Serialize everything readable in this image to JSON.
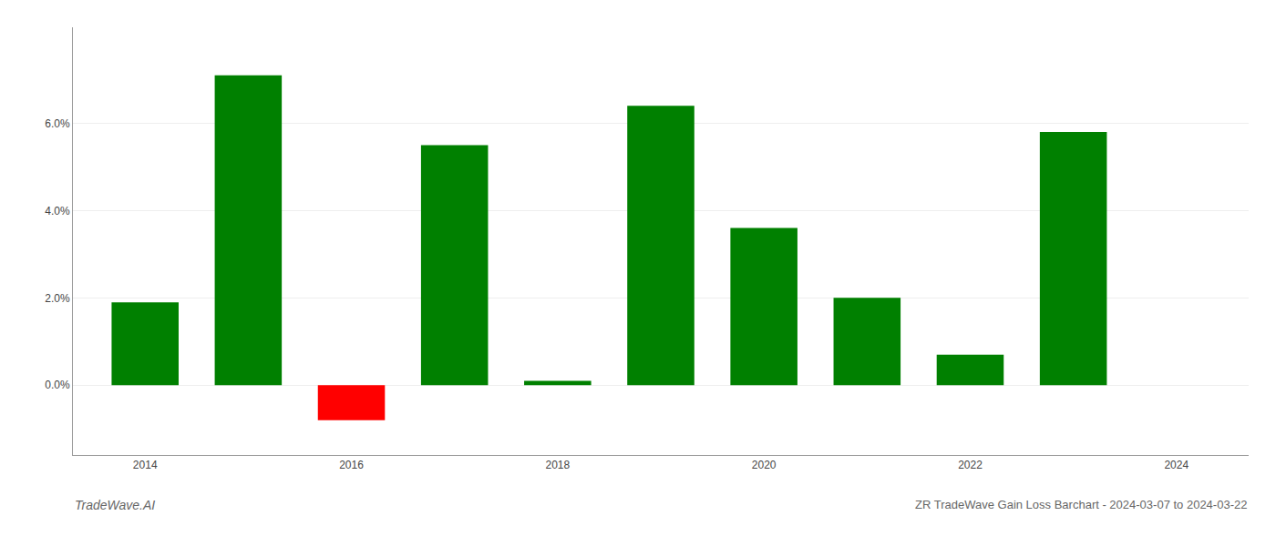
{
  "chart_data": {
    "type": "bar",
    "title": "ZR TradeWave Gain Loss Barchart - 2024-03-07 to 2024-03-22",
    "annotations": [
      {
        "text": "TradeWave.AI"
      }
    ],
    "x": [
      2014,
      2015,
      2016,
      2017,
      2018,
      2019,
      2020,
      2021,
      2022,
      2023
    ],
    "values": [
      0.019,
      0.071,
      -0.008,
      0.055,
      0.001,
      0.064,
      0.036,
      0.02,
      0.007,
      0.058
    ],
    "colors": [
      "#008000",
      "#008000",
      "#ff0000",
      "#008000",
      "#008000",
      "#008000",
      "#008000",
      "#008000",
      "#008000",
      "#008000"
    ],
    "xlim": [
      2013.3,
      2024.7
    ],
    "xticks": [
      2014,
      2016,
      2018,
      2020,
      2022,
      2024
    ],
    "ylim": [
      -0.016,
      0.082
    ],
    "yticks": [
      {
        "value": 0.0,
        "label": "0.0%"
      },
      {
        "value": 0.02,
        "label": "2.0%"
      },
      {
        "value": 0.04,
        "label": "4.0%"
      },
      {
        "value": 0.06,
        "label": "6.0%"
      }
    ],
    "grid": "y"
  }
}
